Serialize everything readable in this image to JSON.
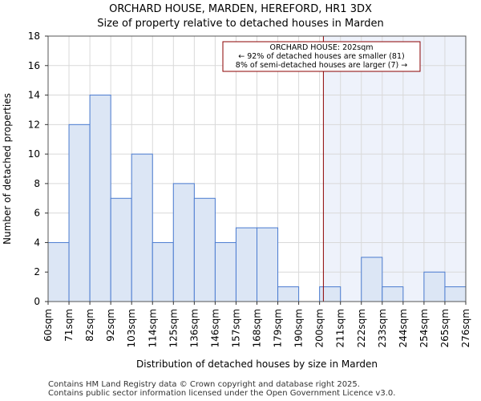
{
  "chart_data": {
    "type": "bar",
    "title": "ORCHARD HOUSE, MARDEN, HEREFORD, HR1 3DX",
    "subtitle": "Size of property relative to detached houses in Marden",
    "xlabel": "Distribution of detached houses by size in Marden",
    "ylabel": "Number of detached properties",
    "ylim": [
      0,
      18
    ],
    "yticks": [
      0,
      2,
      4,
      6,
      8,
      10,
      12,
      14,
      16,
      18
    ],
    "bin_edges": [
      "60sqm",
      "71sqm",
      "82sqm",
      "92sqm",
      "103sqm",
      "114sqm",
      "125sqm",
      "136sqm",
      "146sqm",
      "157sqm",
      "168sqm",
      "179sqm",
      "190sqm",
      "200sqm",
      "211sqm",
      "222sqm",
      "233sqm",
      "244sqm",
      "254sqm",
      "265sqm",
      "276sqm"
    ],
    "values": [
      4,
      12,
      14,
      7,
      10,
      4,
      8,
      7,
      4,
      5,
      5,
      1,
      0,
      1,
      0,
      3,
      1,
      0,
      2,
      1
    ],
    "marker": {
      "value_sqm": 202,
      "label_line1": "ORCHARD HOUSE: 202sqm",
      "label_line2": "← 92% of detached houses are smaller (81)",
      "label_line3": "8% of semi-detached houses are larger (7) →"
    },
    "colors": {
      "bar_fill": "#dce6f5",
      "bar_stroke": "#4a7bd0",
      "marker": "#8b0000",
      "highlight": "#eef2fb",
      "grid": "#d9d9d9"
    }
  },
  "footer": {
    "line1": "Contains HM Land Registry data © Crown copyright and database right 2025.",
    "line2": "Contains public sector information licensed under the Open Government Licence v3.0."
  }
}
